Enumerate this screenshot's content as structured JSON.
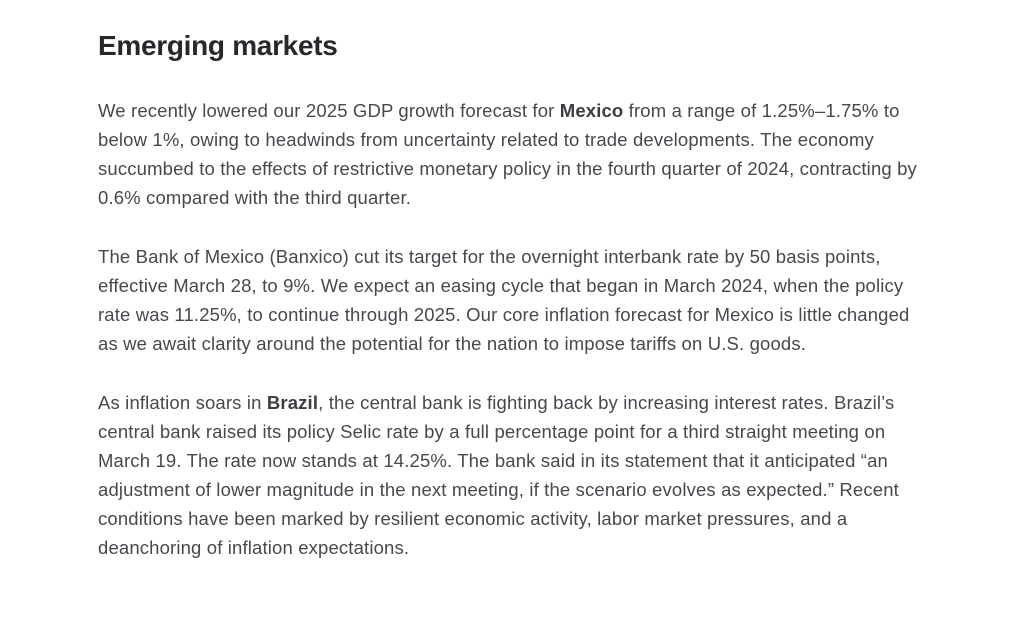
{
  "article": {
    "heading": "Emerging markets",
    "colors": {
      "background": "#ffffff",
      "heading_text": "#26282c",
      "body_text": "#45494e"
    },
    "paragraphs": [
      {
        "runs": [
          {
            "text": "We recently lowered our 2025 GDP growth forecast for ",
            "bold": false
          },
          {
            "text": "Mexico",
            "bold": true
          },
          {
            "text": " from a range of 1.25%–1.75% to below 1%, owing to headwinds from uncertainty related to trade developments. The economy succumbed to the effects of restrictive monetary policy in the fourth quarter of 2024, contracting by 0.6% compared with the third quarter.",
            "bold": false
          }
        ]
      },
      {
        "runs": [
          {
            "text": "The Bank of Mexico (Banxico) cut its target for the overnight interbank rate by 50 basis points, effective March 28, to 9%. We expect an easing cycle that began in March 2024, when the policy rate was 11.25%, to continue through 2025. Our core inflation forecast for Mexico is little changed as we await clarity around the potential for the nation to impose tariffs on U.S. goods.",
            "bold": false
          }
        ]
      },
      {
        "runs": [
          {
            "text": "As inflation soars in ",
            "bold": false
          },
          {
            "text": "Brazil",
            "bold": true
          },
          {
            "text": ", the central bank is fighting back by increasing interest rates. Brazil’s central bank raised its policy Selic rate by a full percentage point for a third straight meeting on March 19. The rate now stands at 14.25%. The bank said in its statement that it anticipated “an adjustment of lower magnitude in the next meeting, if the scenario evolves as expected.” Recent conditions have been marked by resilient economic activity, labor market pressures, and a deanchoring of inflation expectations.",
            "bold": false
          }
        ]
      }
    ]
  }
}
